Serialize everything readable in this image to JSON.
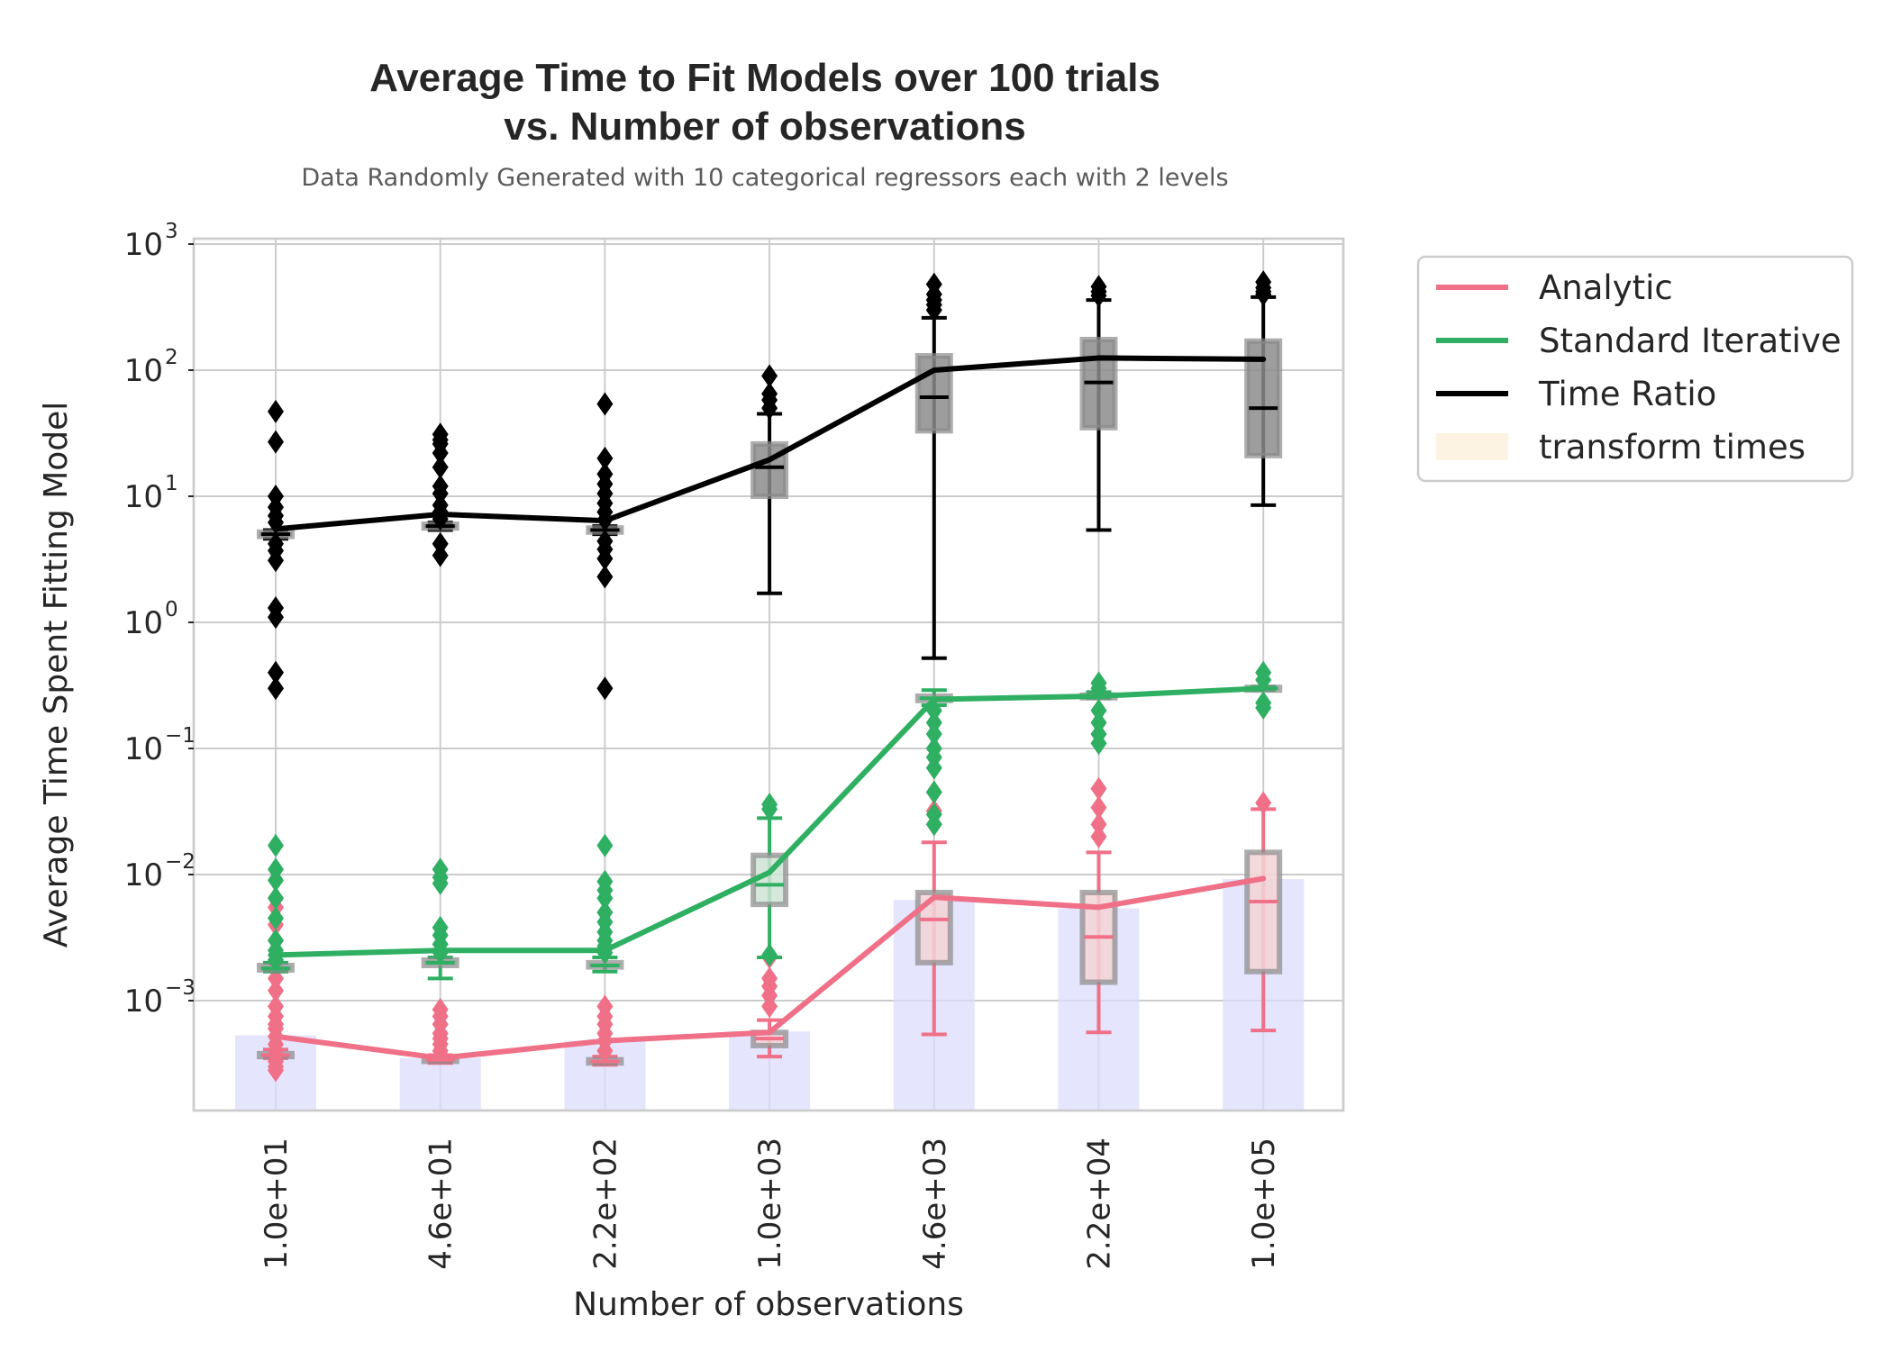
{
  "chart_data": {
    "type": "box-line",
    "title_line1": "Average Time to Fit Models over 100 trials",
    "title_line2": "vs. Number of observations",
    "subtitle": "Data Randomly Generated with 10 categorical regressors each with 2 levels",
    "xlabel": "Number of observations",
    "ylabel": "Average Time Spent Fitting Model",
    "y_scale": "log",
    "ylim": [
      0.00013,
      1000
    ],
    "y_ticks": [
      {
        "base": "10",
        "exp": "3",
        "value": 1000
      },
      {
        "base": "10",
        "exp": "2",
        "value": 100
      },
      {
        "base": "10",
        "exp": "1",
        "value": 10
      },
      {
        "base": "10",
        "exp": "0",
        "value": 1
      },
      {
        "base": "10",
        "exp": "−1",
        "value": 0.1
      },
      {
        "base": "10",
        "exp": "−2",
        "value": 0.01
      },
      {
        "base": "10",
        "exp": "−3",
        "value": 0.001
      }
    ],
    "categories": [
      "1.0e+01",
      "4.6e+01",
      "2.2e+02",
      "1.0e+03",
      "4.6e+03",
      "2.2e+04",
      "1.0e+05"
    ],
    "grid": true,
    "legend_position": "outside-right",
    "legend": [
      {
        "label": "Analytic",
        "kind": "line",
        "color": "#f07088"
      },
      {
        "label": "Standard Iterative",
        "kind": "line",
        "color": "#2eaf62"
      },
      {
        "label": "Time Ratio",
        "kind": "line",
        "color": "#000000"
      },
      {
        "label": "transform times",
        "kind": "patch",
        "color": "#fdf3e2"
      }
    ],
    "series": [
      {
        "name": "Analytic",
        "color": "#f07088",
        "mean": [
          0.00052,
          0.00035,
          0.00048,
          0.00056,
          0.0066,
          0.0055,
          0.0093
        ],
        "boxes": [
          {
            "wl": 0.00035,
            "q1": 0.00036,
            "med": 0.00037,
            "q3": 0.00038,
            "wh": 0.00041,
            "outliers": [
              0.0003,
              0.00028,
              0.00033,
              0.0004,
              0.00045,
              0.00052,
              0.0006,
              0.00065,
              0.00075,
              0.0009,
              0.0012,
              0.0015,
              0.002,
              0.003,
              0.004,
              0.0055,
              0.0065
            ]
          },
          {
            "wl": 0.00032,
            "q1": 0.00033,
            "med": 0.00034,
            "q3": 0.00035,
            "wh": 0.00037,
            "outliers": [
              0.0004,
              0.00045,
              0.0005,
              0.00055,
              0.00065,
              0.00075,
              0.00085
            ]
          },
          {
            "wl": 0.00031,
            "q1": 0.00032,
            "med": 0.00033,
            "q3": 0.00034,
            "wh": 0.00036,
            "outliers": [
              0.0004,
              0.00048,
              0.00055,
              0.00065,
              0.00075,
              0.0009
            ]
          },
          {
            "wl": 0.00036,
            "q1": 0.00044,
            "med": 0.0005,
            "q3": 0.00056,
            "wh": 0.0007,
            "outliers": [
              0.0009,
              0.0011,
              0.0013,
              0.0015,
              0.0022
            ]
          },
          {
            "wl": 0.00054,
            "q1": 0.002,
            "med": 0.0044,
            "q3": 0.0072,
            "wh": 0.018,
            "outliers": [
              0.025,
              0.032,
              0.045
            ]
          },
          {
            "wl": 0.00056,
            "q1": 0.0014,
            "med": 0.0032,
            "q3": 0.0072,
            "wh": 0.015,
            "outliers": [
              0.02,
              0.025,
              0.034,
              0.048
            ]
          },
          {
            "wl": 0.00058,
            "q1": 0.0017,
            "med": 0.0061,
            "q3": 0.015,
            "wh": 0.033,
            "outliers": [
              0.037
            ]
          }
        ]
      },
      {
        "name": "Standard Iterative",
        "color": "#2eaf62",
        "mean": [
          0.0023,
          0.0025,
          0.0025,
          0.0104,
          0.245,
          0.26,
          0.3
        ],
        "boxes": [
          {
            "wl": 0.0017,
            "q1": 0.00175,
            "med": 0.0018,
            "q3": 0.0019,
            "wh": 0.002,
            "outliers": [
              0.0021,
              0.0023,
              0.0025,
              0.003,
              0.0045,
              0.0065,
              0.009,
              0.011,
              0.017
            ]
          },
          {
            "wl": 0.0015,
            "q1": 0.0019,
            "med": 0.002,
            "q3": 0.0021,
            "wh": 0.0022,
            "outliers": [
              0.0024,
              0.0028,
              0.0033,
              0.0038,
              0.0085,
              0.0095,
              0.011
            ]
          },
          {
            "wl": 0.0017,
            "q1": 0.00185,
            "med": 0.0019,
            "q3": 0.002,
            "wh": 0.0022,
            "outliers": [
              0.0024,
              0.0027,
              0.003,
              0.0035,
              0.0042,
              0.005,
              0.0065,
              0.0075,
              0.0088,
              0.017
            ]
          },
          {
            "wl": 0.0022,
            "q1": 0.0058,
            "med": 0.0083,
            "q3": 0.0142,
            "wh": 0.028,
            "outliers": [
              0.0023,
              0.033,
              0.036
            ]
          },
          {
            "wl": 0.22,
            "q1": 0.24,
            "med": 0.25,
            "q3": 0.26,
            "wh": 0.29,
            "outliers": [
              0.025,
              0.03,
              0.045,
              0.07,
              0.085,
              0.1,
              0.13,
              0.16,
              0.2
            ]
          },
          {
            "wl": 0.25,
            "q1": 0.255,
            "med": 0.26,
            "q3": 0.265,
            "wh": 0.28,
            "outliers": [
              0.11,
              0.13,
              0.16,
              0.2,
              0.3,
              0.33
            ]
          },
          {
            "wl": 0.29,
            "q1": 0.295,
            "med": 0.3,
            "q3": 0.305,
            "wh": 0.31,
            "outliers": [
              0.21,
              0.23,
              0.35,
              0.4
            ]
          }
        ]
      },
      {
        "name": "Time Ratio",
        "color": "#000000",
        "mean": [
          5.5,
          7.2,
          6.4,
          19.5,
          100,
          125,
          122
        ],
        "boxes": [
          {
            "wl": 4.6,
            "q1": 4.8,
            "med": 5.0,
            "q3": 5.2,
            "wh": 5.4,
            "outliers": [
              0.3,
              0.4,
              1.1,
              1.3,
              3.1,
              3.7,
              4.2,
              6.2,
              7.0,
              8.2,
              10.0,
              27,
              47
            ]
          },
          {
            "wl": 5.4,
            "q1": 5.6,
            "med": 5.8,
            "q3": 6.0,
            "wh": 6.2,
            "outliers": [
              3.4,
              4.2,
              6.6,
              7.5,
              8.5,
              10.5,
              12.0,
              17,
              22,
              26,
              28,
              31
            ]
          },
          {
            "wl": 5.0,
            "q1": 5.2,
            "med": 5.4,
            "q3": 5.6,
            "wh": 5.8,
            "outliers": [
              0.3,
              2.3,
              3.2,
              3.8,
              4.4,
              6.5,
              7.5,
              8.8,
              10.5,
              12.5,
              15,
              20,
              54
            ]
          },
          {
            "wl": 1.7,
            "q1": 10.0,
            "med": 17.0,
            "q3": 26.0,
            "wh": 45.0,
            "outliers": [
              50,
              58,
              65,
              90
            ]
          },
          {
            "wl": 0.52,
            "q1": 33.0,
            "med": 61.0,
            "q3": 130.0,
            "wh": 260.0,
            "outliers": [
              300,
              330,
              360,
              400,
              480
            ]
          },
          {
            "wl": 5.4,
            "q1": 35.0,
            "med": 80.0,
            "q3": 175.0,
            "wh": 360.0,
            "outliers": [
              390,
              420,
              460
            ]
          },
          {
            "wl": 8.5,
            "q1": 21.0,
            "med": 50.0,
            "q3": 170.0,
            "wh": 380.0,
            "outliers": [
              400,
              420,
              450,
              500
            ]
          }
        ]
      }
    ],
    "background_bars": {
      "color": "#dcdcfc",
      "values": [
        0.00053,
        0.00035,
        0.00048,
        0.00057,
        0.0063,
        0.0054,
        0.0092
      ]
    }
  }
}
